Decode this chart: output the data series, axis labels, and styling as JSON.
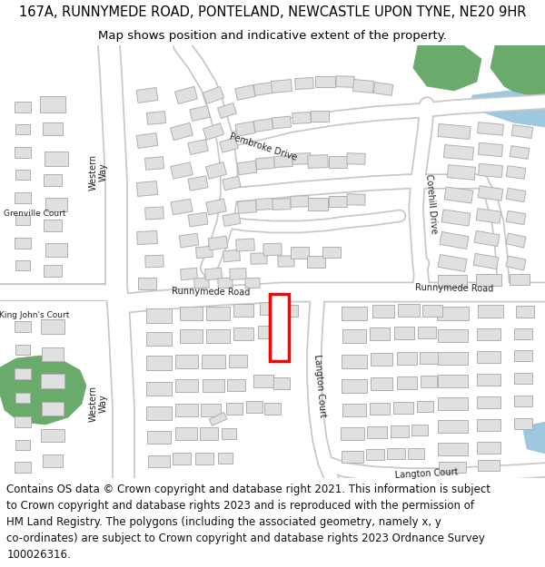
{
  "title": "167A, RUNNYMEDE ROAD, PONTELAND, NEWCASTLE UPON TYNE, NE20 9HR",
  "subtitle": "Map shows position and indicative extent of the property.",
  "footer_lines": [
    "Contains OS data © Crown copyright and database right 2021. This information is subject",
    "to Crown copyright and database rights 2023 and is reproduced with the permission of",
    "HM Land Registry. The polygons (including the associated geometry, namely x, y",
    "co-ordinates) are subject to Crown copyright and database rights 2023 Ordnance Survey",
    "100026316."
  ],
  "title_fontsize": 10.5,
  "subtitle_fontsize": 9.5,
  "footer_fontsize": 8.5,
  "map_bg": "#f5f5f5",
  "road_color": "#ffffff",
  "road_edge_color": "#c8c8c8",
  "building_color": "#e0e0e0",
  "building_edge_color": "#b0b0b0",
  "green_color": "#6aaa6a",
  "water_color": "#9ec8e0",
  "plot_edge_color": "#ff0000",
  "figsize": [
    6.0,
    6.25
  ],
  "dpi": 100
}
